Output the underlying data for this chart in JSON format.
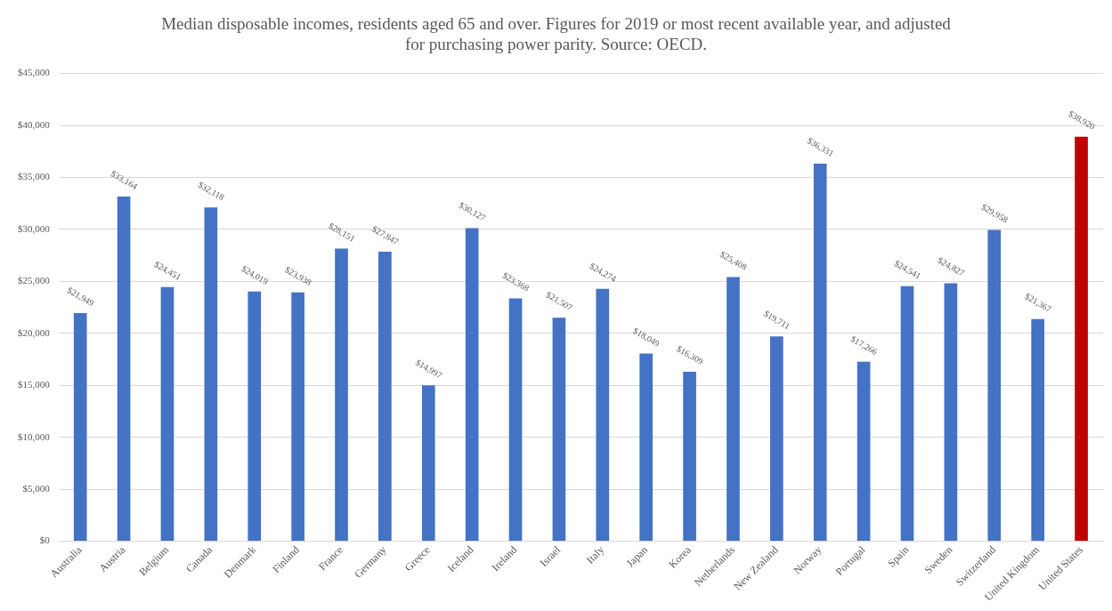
{
  "chart_data": {
    "type": "bar",
    "title": [
      "Median disposable incomes, residents aged 65 and over. Figures for 2019 or most recent available year, and adjusted",
      "for purchasing power parity. Source: OECD."
    ],
    "categories": [
      "Australia",
      "Austria",
      "Belgium",
      "Canada",
      "Denmark",
      "Finland",
      "France",
      "Germany",
      "Greece",
      "Iceland",
      "Ireland",
      "Israel",
      "Italy",
      "Japan",
      "Korea",
      "Netherlands",
      "New Zealand",
      "Norway",
      "Portugal",
      "Spain",
      "Sweden",
      "Switzerland",
      "United Kingdom",
      "United States"
    ],
    "values": [
      21949,
      33164,
      24451,
      32118,
      24019,
      23938,
      28151,
      27847,
      14997,
      30127,
      23368,
      21507,
      24274,
      18049,
      16309,
      25408,
      19711,
      36331,
      17266,
      24541,
      24827,
      29958,
      21367,
      38920
    ],
    "value_labels": [
      "$21,949",
      "$33,164",
      "$24,451",
      "$32,118",
      "$24,019",
      "$23,938",
      "$28,151",
      "$27,847",
      "$14,997",
      "$30,127",
      "$23,368",
      "$21,507",
      "$24,274",
      "$18,049",
      "$16,309",
      "$25,408",
      "$19,711",
      "$36,331",
      "$17,266",
      "$24,541",
      "$24,827",
      "$29,958",
      "$21,367",
      "$38,920"
    ],
    "colors": [
      "#4472c4",
      "#4472c4",
      "#4472c4",
      "#4472c4",
      "#4472c4",
      "#4472c4",
      "#4472c4",
      "#4472c4",
      "#4472c4",
      "#4472c4",
      "#4472c4",
      "#4472c4",
      "#4472c4",
      "#4472c4",
      "#4472c4",
      "#4472c4",
      "#4472c4",
      "#4472c4",
      "#4472c4",
      "#4472c4",
      "#4472c4",
      "#4472c4",
      "#4472c4",
      "#c00000"
    ],
    "ylim": [
      0,
      45000
    ],
    "yticks": [
      {
        "value": 0,
        "label": "$0"
      },
      {
        "value": 5000,
        "label": "$5,000"
      },
      {
        "value": 10000,
        "label": "$10,000"
      },
      {
        "value": 15000,
        "label": "$15,000"
      },
      {
        "value": 20000,
        "label": "$20,000"
      },
      {
        "value": 25000,
        "label": "$25,000"
      },
      {
        "value": 30000,
        "label": "$30,000"
      },
      {
        "value": 35000,
        "label": "$35,000"
      },
      {
        "value": 40000,
        "label": "$40,000"
      },
      {
        "value": 45000,
        "label": "$45,000"
      }
    ],
    "grid": "y"
  }
}
